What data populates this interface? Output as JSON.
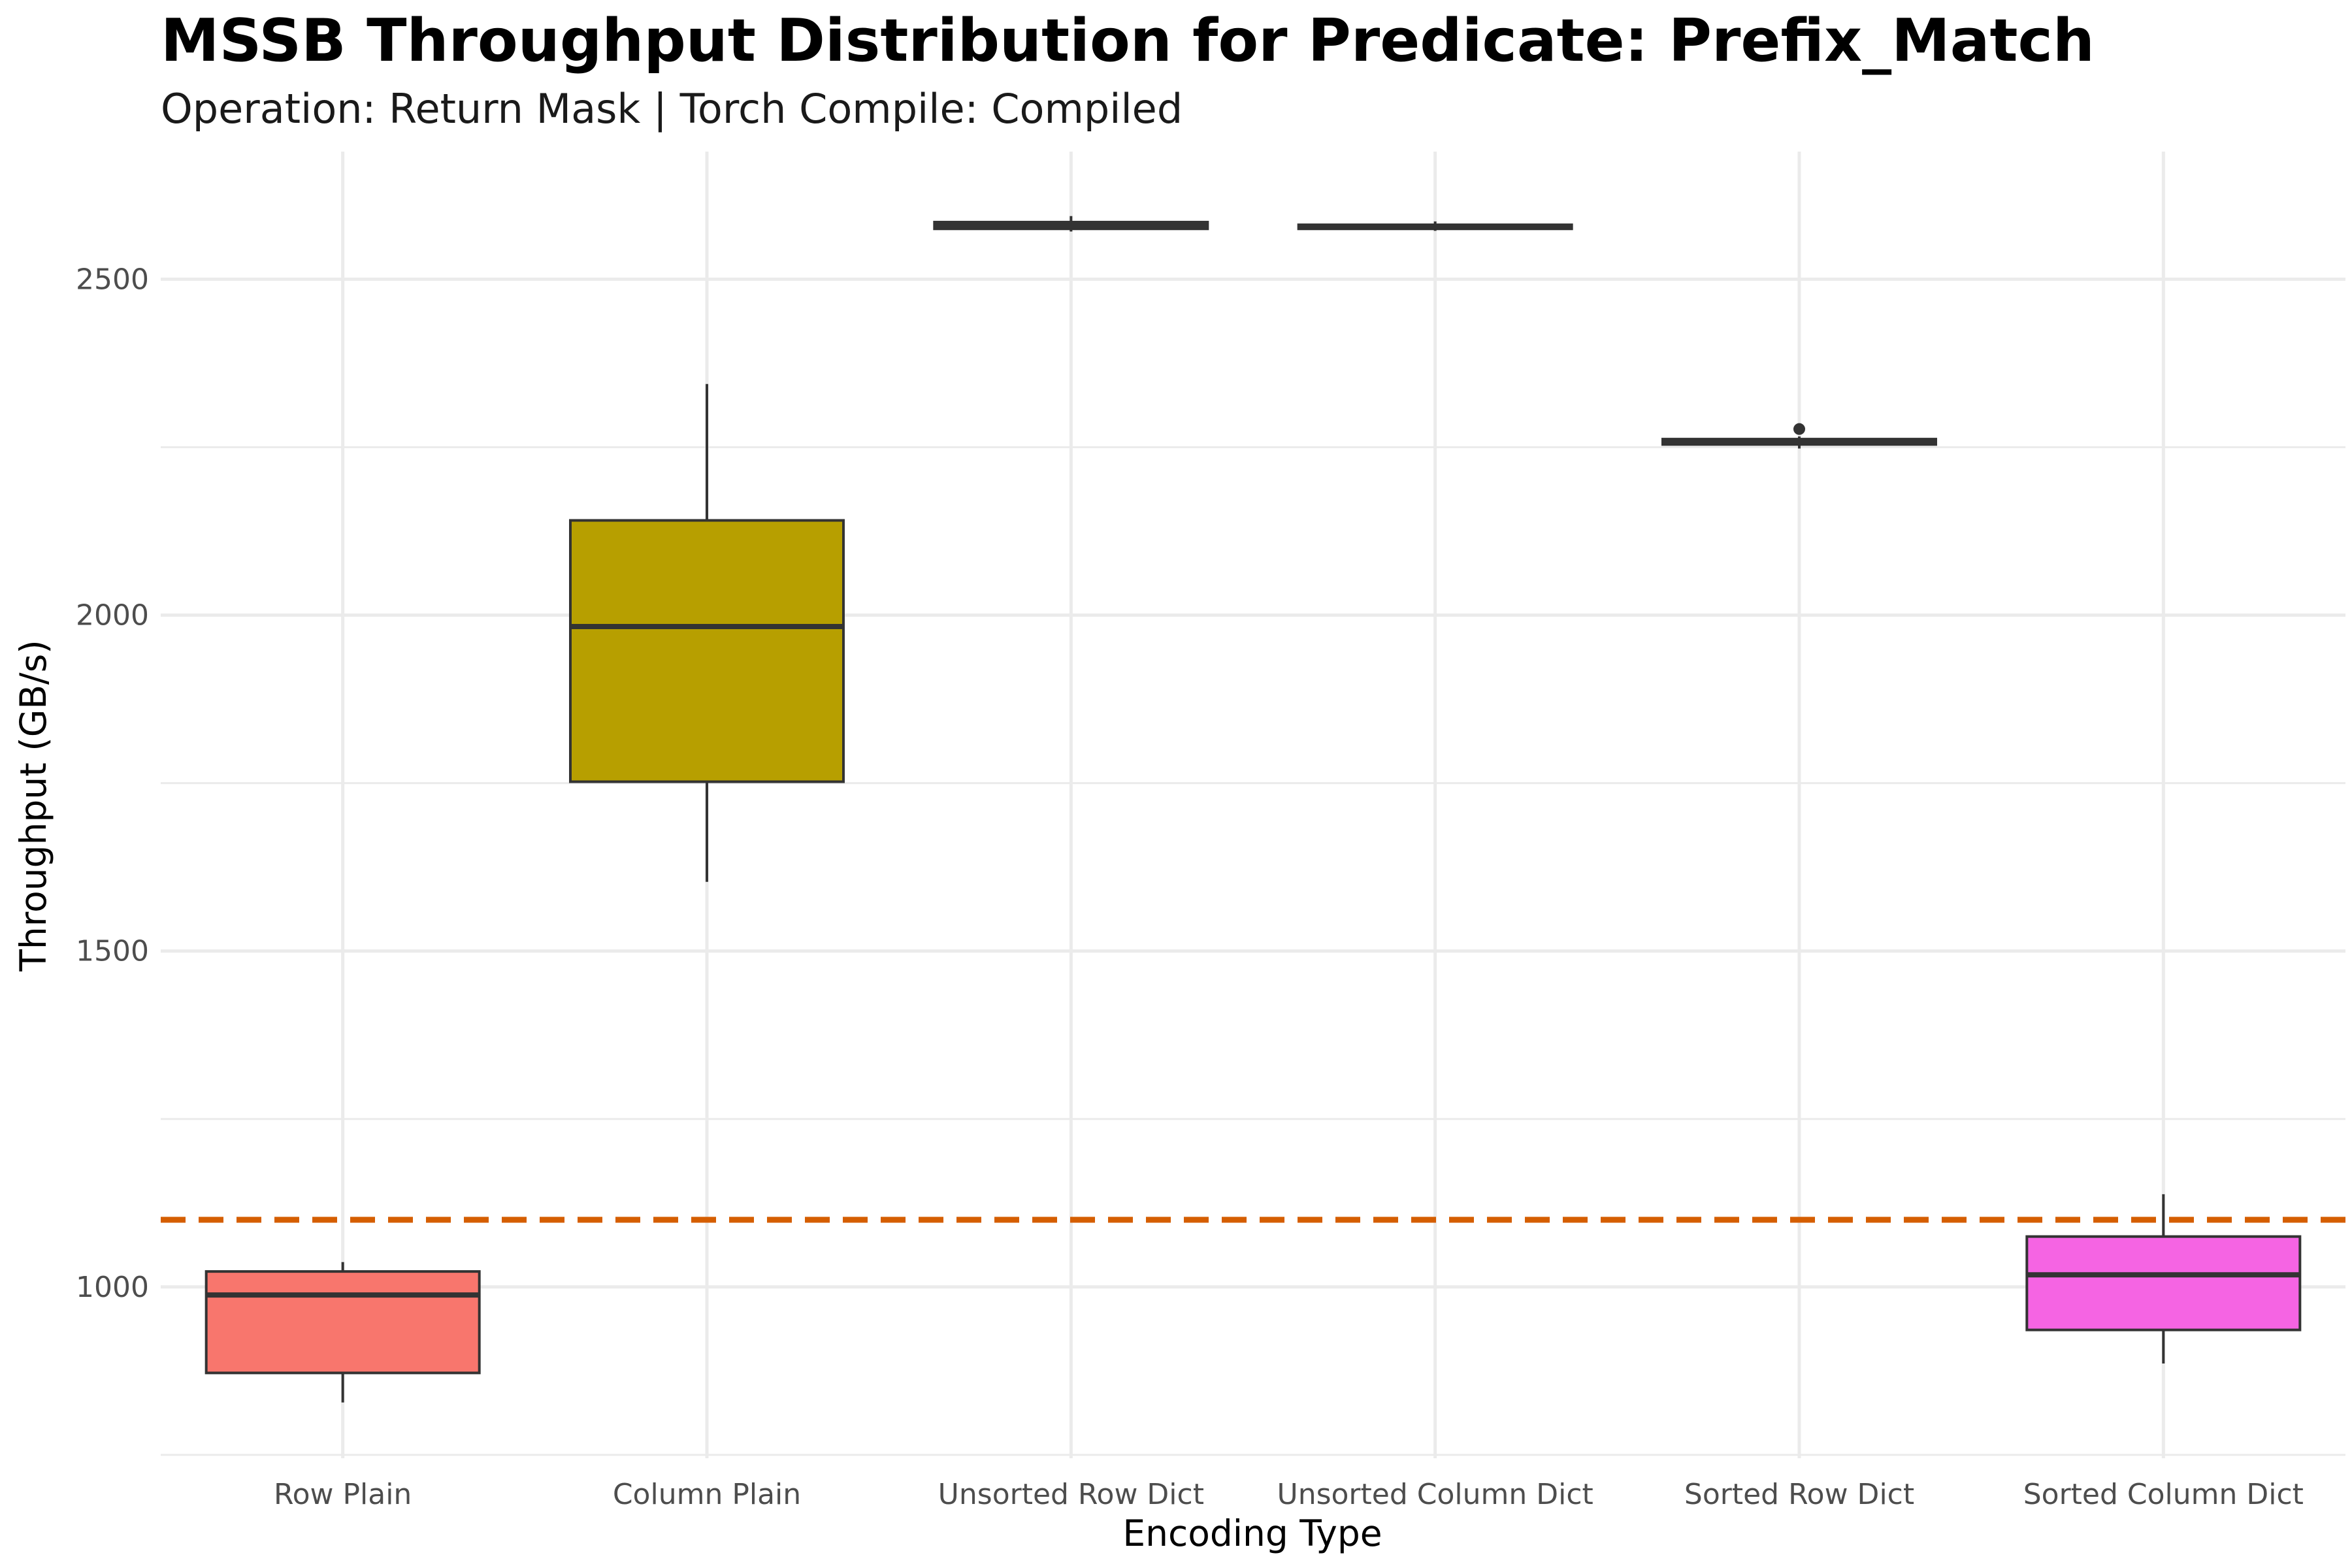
{
  "chart_data": {
    "type": "box",
    "title": "MSSB Throughput Distribution for Predicate: Prefix_Match",
    "subtitle": "Operation: Return Mask | Torch Compile: Compiled",
    "xlabel": "Encoding Type",
    "ylabel": "Throughput (GB/s)",
    "ylim": [
      745,
      2690
    ],
    "yticks": [
      1000,
      1500,
      2000,
      2500
    ],
    "grid": true,
    "legend": "none",
    "reference_line": {
      "y": 1100,
      "style": "dashed",
      "color": "#d55e00"
    },
    "categories": [
      "Row Plain",
      "Column Plain",
      "Unsorted Row Dict",
      "Unsorted Column Dict",
      "Sorted Row Dict",
      "Sorted Column Dict"
    ],
    "boxes": [
      {
        "category": "Row Plain",
        "color": "#f8766d",
        "min": 828,
        "q1": 872,
        "median": 988,
        "q3": 1023,
        "max": 1037,
        "outliers": []
      },
      {
        "category": "Column Plain",
        "color": "#b79f00",
        "min": 1603,
        "q1": 1752,
        "median": 1983,
        "q3": 2141,
        "max": 2344,
        "outliers": []
      },
      {
        "category": "Unsorted Row Dict",
        "color": "#00ba38",
        "min": 2571,
        "q1": 2575,
        "median": 2580,
        "q3": 2585,
        "max": 2594,
        "outliers": []
      },
      {
        "category": "Unsorted Column Dict",
        "color": "#00bfc4",
        "min": 2572,
        "q1": 2575,
        "median": 2578,
        "q3": 2581,
        "max": 2586,
        "outliers": []
      },
      {
        "category": "Sorted Row Dict",
        "color": "#619cff",
        "min": 2248,
        "q1": 2254,
        "median": 2258,
        "q3": 2262,
        "max": 2266,
        "outliers": [
          2277
        ]
      },
      {
        "category": "Sorted Column Dict",
        "color": "#f564e3",
        "min": 886,
        "q1": 936,
        "median": 1018,
        "q3": 1075,
        "max": 1138,
        "outliers": []
      }
    ]
  }
}
